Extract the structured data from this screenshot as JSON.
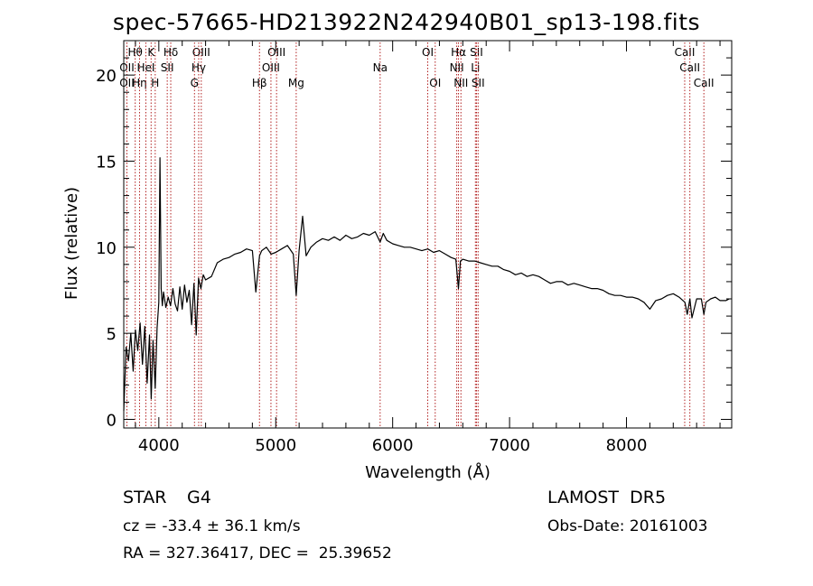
{
  "header": {
    "title": "spec-57665-HD213922N242940B01_sp13-198.fits"
  },
  "info": {
    "object_class": "STAR",
    "subclass": "G4",
    "survey": "LAMOST  DR5",
    "redshift": "cz = -33.4 ± 36.1 km/s",
    "obs_date": "Obs-Date: 20161003",
    "coords": "RA = 327.36417, DEC =  25.39652"
  },
  "chart_data": {
    "type": "line",
    "xlabel": "Wavelength (Å)",
    "ylabel": "Flux (relative)",
    "xlim": [
      3700,
      8900
    ],
    "ylim": [
      -0.5,
      22
    ],
    "xticks": [
      4000,
      5000,
      6000,
      7000,
      8000
    ],
    "yticks": [
      0,
      5,
      10,
      15,
      20
    ],
    "colors": {
      "line_marker": "#b22222",
      "spectrum": "#000000"
    },
    "lines": [
      {
        "label": "Hθ",
        "x": 3798,
        "row": 0
      },
      {
        "label": "OII",
        "x": 3727,
        "row": 1
      },
      {
        "label": "OII",
        "x": 3727,
        "row": 2
      },
      {
        "label": "Hη",
        "x": 3835,
        "row": 2
      },
      {
        "label": "HeI",
        "x": 3889,
        "row": 1
      },
      {
        "label": "K",
        "x": 3934,
        "row": 0
      },
      {
        "label": "H",
        "x": 3969,
        "row": 2
      },
      {
        "label": "Hδ",
        "x": 4102,
        "row": 0
      },
      {
        "label": "SII",
        "x": 4072,
        "row": 1
      },
      {
        "label": "OIII",
        "x": 4363,
        "row": 0
      },
      {
        "label": "Hγ",
        "x": 4341,
        "row": 1
      },
      {
        "label": "G",
        "x": 4305,
        "row": 2
      },
      {
        "label": "Hβ",
        "x": 4861,
        "row": 2
      },
      {
        "label": "OIII",
        "x": 5007,
        "row": 0
      },
      {
        "label": "OIII",
        "x": 4959,
        "row": 1
      },
      {
        "label": "Mg",
        "x": 5175,
        "row": 2
      },
      {
        "label": "Na",
        "x": 5893,
        "row": 1
      },
      {
        "label": "OI",
        "x": 6300,
        "row": 0
      },
      {
        "label": "OI",
        "x": 6364,
        "row": 2
      },
      {
        "label": "Hα",
        "x": 6563,
        "row": 0
      },
      {
        "label": "NII",
        "x": 6548,
        "row": 1
      },
      {
        "label": "NII",
        "x": 6584,
        "row": 2
      },
      {
        "label": "SII",
        "x": 6717,
        "row": 0
      },
      {
        "label": "Li",
        "x": 6708,
        "row": 1
      },
      {
        "label": "SII",
        "x": 6731,
        "row": 2
      },
      {
        "label": "CaII",
        "x": 8498,
        "row": 0
      },
      {
        "label": "CaII",
        "x": 8542,
        "row": 1
      },
      {
        "label": "CaII",
        "x": 8662,
        "row": 2
      }
    ],
    "spectrum": {
      "x": [
        3700,
        3720,
        3740,
        3760,
        3780,
        3800,
        3820,
        3840,
        3860,
        3880,
        3900,
        3920,
        3935,
        3950,
        3969,
        3985,
        4000,
        4010,
        4020,
        4030,
        4040,
        4060,
        4080,
        4100,
        4120,
        4140,
        4160,
        4180,
        4200,
        4220,
        4240,
        4260,
        4280,
        4300,
        4320,
        4340,
        4360,
        4380,
        4400,
        4450,
        4500,
        4550,
        4600,
        4650,
        4700,
        4750,
        4800,
        4830,
        4861,
        4880,
        4920,
        4960,
        5000,
        5050,
        5100,
        5150,
        5175,
        5200,
        5230,
        5260,
        5300,
        5350,
        5400,
        5450,
        5500,
        5550,
        5600,
        5650,
        5700,
        5750,
        5800,
        5850,
        5893,
        5920,
        5950,
        6000,
        6050,
        6100,
        6150,
        6200,
        6250,
        6300,
        6350,
        6400,
        6450,
        6500,
        6540,
        6563,
        6580,
        6600,
        6650,
        6700,
        6750,
        6800,
        6850,
        6900,
        6950,
        7000,
        7050,
        7100,
        7150,
        7200,
        7250,
        7300,
        7350,
        7400,
        7450,
        7500,
        7550,
        7600,
        7650,
        7700,
        7750,
        7800,
        7850,
        7900,
        7950,
        8000,
        8050,
        8100,
        8150,
        8200,
        8250,
        8300,
        8350,
        8400,
        8450,
        8500,
        8520,
        8542,
        8560,
        8600,
        8640,
        8662,
        8680,
        8720,
        8760,
        8800,
        8850,
        8880
      ],
      "y": [
        0.5,
        4.2,
        3.4,
        5.0,
        2.8,
        5.2,
        4.0,
        5.6,
        3.2,
        5.4,
        2.1,
        4.9,
        1.2,
        4.6,
        1.8,
        5.3,
        6.8,
        15.2,
        7.6,
        6.6,
        7.4,
        6.5,
        7.1,
        6.6,
        7.6,
        6.7,
        6.3,
        7.7,
        6.4,
        7.8,
        6.8,
        7.5,
        5.5,
        7.9,
        4.9,
        8.2,
        7.6,
        8.4,
        8.1,
        8.3,
        9.1,
        9.3,
        9.4,
        9.6,
        9.7,
        9.9,
        9.8,
        7.4,
        9.5,
        9.8,
        10.0,
        9.6,
        9.7,
        9.9,
        10.1,
        9.6,
        7.2,
        9.8,
        11.8,
        9.5,
        10.0,
        10.3,
        10.5,
        10.4,
        10.6,
        10.4,
        10.7,
        10.5,
        10.6,
        10.8,
        10.7,
        10.9,
        10.3,
        10.8,
        10.4,
        10.2,
        10.1,
        10.0,
        10.0,
        9.9,
        9.8,
        9.9,
        9.7,
        9.8,
        9.6,
        9.4,
        9.3,
        7.6,
        9.2,
        9.3,
        9.2,
        9.2,
        9.1,
        9.0,
        8.9,
        8.9,
        8.7,
        8.6,
        8.4,
        8.5,
        8.3,
        8.4,
        8.3,
        8.1,
        7.9,
        8.0,
        8.0,
        7.8,
        7.9,
        7.8,
        7.7,
        7.6,
        7.6,
        7.5,
        7.3,
        7.2,
        7.2,
        7.1,
        7.1,
        7.0,
        6.8,
        6.4,
        6.9,
        7.0,
        7.2,
        7.3,
        7.1,
        6.8,
        6.1,
        7.0,
        5.9,
        7.0,
        7.0,
        6.1,
        6.8,
        7.0,
        7.1,
        6.9,
        6.9,
        7.0
      ]
    }
  }
}
